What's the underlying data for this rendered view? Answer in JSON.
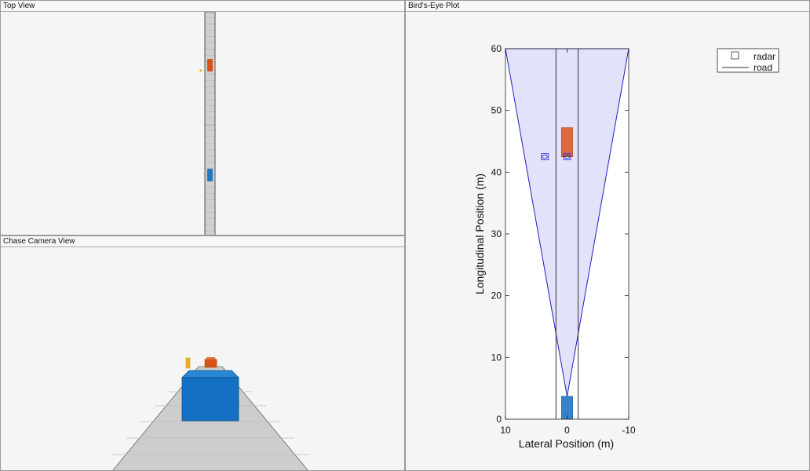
{
  "panels": {
    "top_view": {
      "title": "Top View"
    },
    "chase_view": {
      "title": "Chase Camera View"
    },
    "birds_eye": {
      "title": "Bird's-Eye Plot"
    }
  },
  "colors": {
    "ego_vehicle": "#1f77c4",
    "target_vehicle": "#d95319",
    "pedestrian": "#edb120",
    "coverage_fill": "#e2e2fa",
    "coverage_edge": "#1f1fc8",
    "road_line": "#333333",
    "panel_bg": "#f5f5f5"
  },
  "chart_data": {
    "type": "scatter",
    "xlabel": "Lateral Position (m)",
    "ylabel": "Longitudinal Position (m)",
    "xlim": [
      10,
      -10
    ],
    "ylim": [
      0,
      60
    ],
    "x_reversed": true,
    "x_ticks": [
      "10",
      "0",
      "-10"
    ],
    "y_ticks": [
      "0",
      "10",
      "20",
      "30",
      "40",
      "50",
      "60"
    ],
    "grid": false,
    "legend": {
      "placement": "top-right",
      "entries": [
        {
          "label": "radar",
          "marker": "square"
        },
        {
          "label": "road",
          "marker": "line"
        }
      ]
    },
    "radar_coverage": {
      "origin": [
        0,
        3.7
      ],
      "corners": [
        [
          10,
          60
        ],
        [
          -10,
          60
        ]
      ]
    },
    "road_boundaries": [
      {
        "x": [
          1.8,
          1.8
        ],
        "y": [
          0,
          60
        ]
      },
      {
        "x": [
          -1.8,
          -1.8
        ],
        "y": [
          0,
          60
        ]
      }
    ],
    "ego_vehicle": {
      "x_range": [
        0.9,
        -0.9
      ],
      "y_range": [
        0,
        3.7
      ]
    },
    "target_vehicle": {
      "x_range": [
        0.9,
        -0.9
      ],
      "y_range": [
        42.5,
        47.2
      ]
    },
    "detections": [
      {
        "x": 0,
        "y": 42.5
      },
      {
        "x": 3.6,
        "y": 42.5
      }
    ]
  }
}
